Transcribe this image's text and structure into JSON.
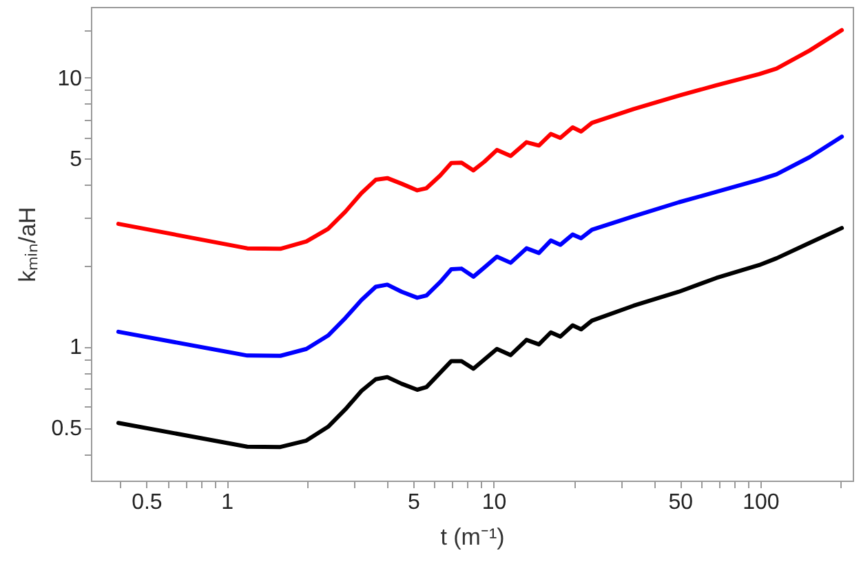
{
  "chart_data": {
    "type": "line",
    "xlabel": "t (m⁻¹)",
    "ylabel": "kₘᵢₙ/aH",
    "log": "xy",
    "grid": false,
    "marker": "none",
    "line_style": "solid",
    "x": [
      0.393,
      1.195,
      1.59,
      1.99,
      2.4,
      2.79,
      3.2,
      3.62,
      4.0,
      4.53,
      5.18,
      5.61,
      6.32,
      6.95,
      7.59,
      8.41,
      9.25,
      10.3,
      11.6,
      13.3,
      14.8,
      16.4,
      17.8,
      19.8,
      21.3,
      23.4,
      33.5,
      49.5,
      68.4,
      99,
      115,
      153,
      202
    ],
    "series": [
      {
        "color": "#ff0000",
        "values": [
          2.86,
          2.32,
          2.31,
          2.46,
          2.74,
          3.18,
          3.72,
          4.17,
          4.23,
          4.03,
          3.81,
          3.88,
          4.33,
          4.81,
          4.83,
          4.52,
          4.87,
          5.38,
          5.11,
          5.75,
          5.59,
          6.17,
          5.97,
          6.53,
          6.3,
          6.79,
          7.64,
          8.56,
          9.36,
          10.3,
          10.8,
          12.6,
          15.0
        ]
      },
      {
        "color": "#0000ff",
        "values": [
          1.136,
          0.927,
          0.925,
          0.981,
          1.1,
          1.28,
          1.49,
          1.67,
          1.7,
          1.6,
          1.52,
          1.55,
          1.74,
          1.94,
          1.95,
          1.82,
          1.97,
          2.16,
          2.05,
          2.32,
          2.23,
          2.48,
          2.39,
          2.61,
          2.53,
          2.72,
          3.05,
          3.44,
          3.76,
          4.17,
          4.37,
          5.06,
          6.03
        ]
      },
      {
        "color": "#000000",
        "values": [
          0.521,
          0.425,
          0.424,
          0.448,
          0.504,
          0.586,
          0.685,
          0.757,
          0.771,
          0.728,
          0.692,
          0.708,
          0.801,
          0.884,
          0.884,
          0.828,
          0.897,
          0.981,
          0.931,
          1.06,
          1.02,
          1.13,
          1.09,
          1.2,
          1.16,
          1.25,
          1.42,
          1.6,
          1.8,
          2.01,
          2.13,
          2.43,
          2.76
        ]
      }
    ],
    "xlim": [
      0.31,
      222
    ],
    "ylim": [
      0.318,
      18.3
    ],
    "xticks": [
      {
        "value": 0.4,
        "label": null
      },
      0.5,
      {
        "value": 0.6,
        "label": null
      },
      {
        "value": 0.7,
        "label": null
      },
      {
        "value": 0.8,
        "label": null
      },
      {
        "value": 0.9,
        "label": null
      },
      1,
      {
        "value": 2,
        "label": null
      },
      {
        "value": 3,
        "label": null
      },
      {
        "value": 4,
        "label": null
      },
      5,
      {
        "value": 6,
        "label": null
      },
      {
        "value": 7,
        "label": null
      },
      {
        "value": 8,
        "label": null
      },
      {
        "value": 9,
        "label": null
      },
      10,
      {
        "value": 20,
        "label": null
      },
      {
        "value": 30,
        "label": null
      },
      {
        "value": 40,
        "label": null
      },
      50,
      {
        "value": 60,
        "label": null
      },
      {
        "value": 70,
        "label": null
      },
      {
        "value": 80,
        "label": null
      },
      {
        "value": 90,
        "label": null
      },
      100,
      {
        "value": 200,
        "label": null
      }
    ],
    "yticks": [
      {
        "value": 0.4,
        "label": null
      },
      0.5,
      {
        "value": 0.6,
        "label": null
      },
      {
        "value": 0.7,
        "label": null
      },
      {
        "value": 0.8,
        "label": null
      },
      {
        "value": 0.9,
        "label": null
      },
      1,
      {
        "value": 2,
        "label": null
      },
      {
        "value": 3,
        "label": null
      },
      {
        "value": 4,
        "label": null
      },
      5,
      {
        "value": 6,
        "label": null
      },
      {
        "value": 7,
        "label": null
      },
      {
        "value": 8,
        "label": null
      },
      {
        "value": 9,
        "label": null
      },
      10,
      {
        "value": 15,
        "label": null
      }
    ]
  }
}
